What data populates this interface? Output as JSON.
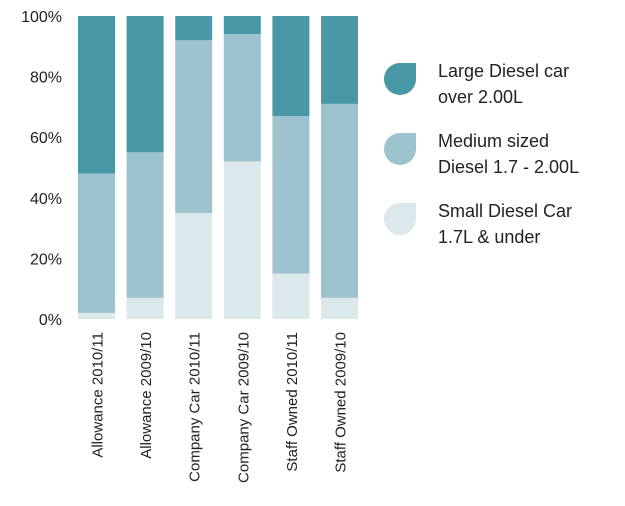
{
  "chart_data": {
    "type": "bar",
    "stacked": true,
    "categories": [
      "Allowance 2010/11",
      "Allowance 2009/10",
      "Company Car 2010/11",
      "Company Car 2009/10",
      "Staff Owned 2010/11",
      "Staff Owned 2009/10"
    ],
    "series": [
      {
        "name": "Small Diesel Car\n1.7L & under",
        "color": "#dbe8ec",
        "values": [
          2,
          7,
          35,
          52,
          15,
          7
        ]
      },
      {
        "name": "Medium sized\nDiesel 1.7 - 2.00L",
        "color": "#9dc4ce",
        "values": [
          46,
          48,
          57,
          42,
          52,
          64
        ]
      },
      {
        "name": "Large Diesel car\nover 2.00L",
        "color": "#4898a8",
        "values": [
          52,
          45,
          8,
          6,
          33,
          29
        ]
      }
    ],
    "ylim": [
      0,
      100
    ],
    "yticks": [
      "0%",
      "20%",
      "40%",
      "60%",
      "80%",
      "100%"
    ],
    "legend_position": "right",
    "grid": false
  },
  "legend_items": [
    {
      "label": "Large Diesel car\nover 2.00L",
      "color": "#4898a8"
    },
    {
      "label": "Medium sized\nDiesel 1.7 - 2.00L",
      "color": "#9dc4ce"
    },
    {
      "label": "Small Diesel Car\n1.7L & under",
      "color": "#dbe8ec"
    }
  ]
}
